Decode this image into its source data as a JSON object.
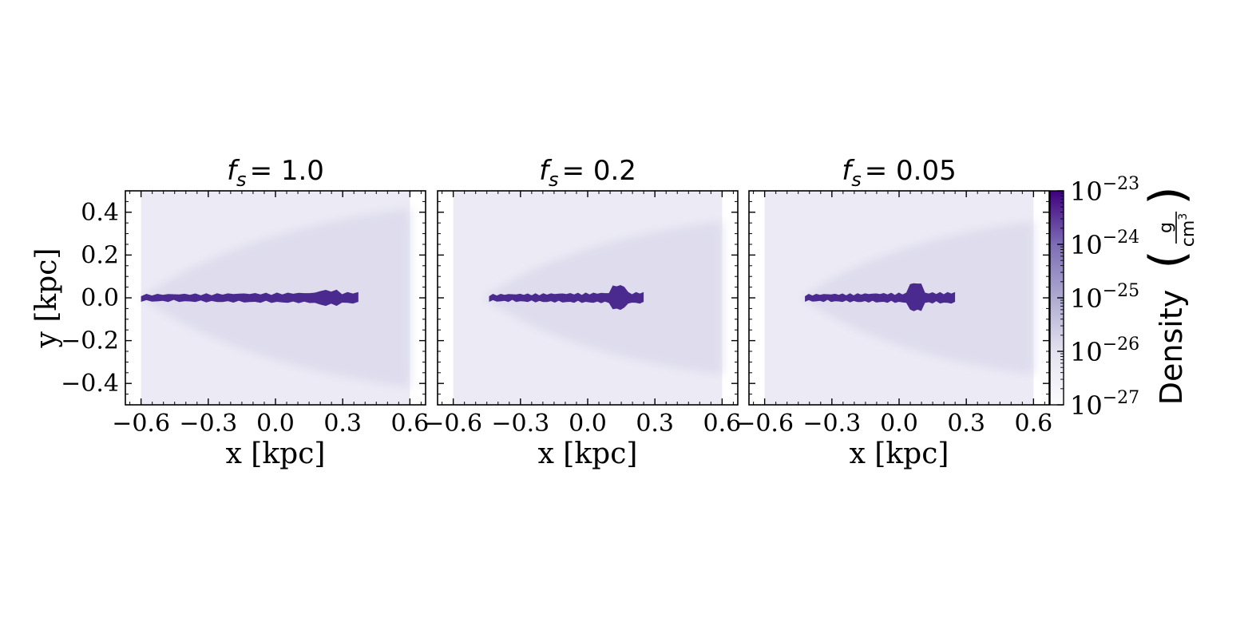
{
  "chart_data": {
    "type": "heatmap",
    "figure_description_colormap": "Purples",
    "colors": {
      "background_panel": "#ebebf5",
      "filament": "#4a2a8e",
      "filament_dark": "#3f007d",
      "axis": "#000000",
      "figure_bg": "#ffffff"
    },
    "xlim": [
      -0.67,
      0.67
    ],
    "ylim": [
      -0.5,
      0.5
    ],
    "domain_x": [
      -0.6,
      0.6
    ],
    "xlabel": "x [kpc]",
    "ylabel": "y [kpc]",
    "x_ticks": [
      -0.6,
      -0.3,
      0.0,
      0.3,
      0.6
    ],
    "x_tick_labels": [
      "−0.6",
      "−0.3",
      "0.0",
      "0.3",
      "0.6"
    ],
    "y_ticks": [
      0.4,
      0.2,
      0.0,
      -0.2,
      -0.4
    ],
    "y_tick_labels": [
      "0.4",
      "0.2",
      "0.0",
      "−0.2",
      "−0.4"
    ],
    "panels": [
      {
        "title_var": "f",
        "title_sub": "s",
        "title_value": "= 1.0",
        "stream_x": [
          -0.6,
          0.37
        ],
        "bow_apex_x": -0.6
      },
      {
        "title_var": "f",
        "title_sub": "s",
        "title_value": "= 0.2",
        "stream_x": [
          -0.44,
          0.25
        ],
        "bow_apex_x": -0.47
      },
      {
        "title_var": "f",
        "title_sub": "s",
        "title_value": "= 0.05",
        "stream_x": [
          -0.42,
          0.25
        ],
        "bow_apex_x": -0.44
      }
    ],
    "colorbar": {
      "label": "Density",
      "unit_numerator": "g",
      "unit_denominator": "cm",
      "unit_denominator_exp": "3",
      "scale": "log",
      "range": [
        1e-27,
        1e-23
      ],
      "tick_bases": [
        "10",
        "10",
        "10",
        "10",
        "10"
      ],
      "tick_exponents": [
        "−23",
        "−24",
        "−25",
        "−26",
        "−27"
      ]
    }
  }
}
